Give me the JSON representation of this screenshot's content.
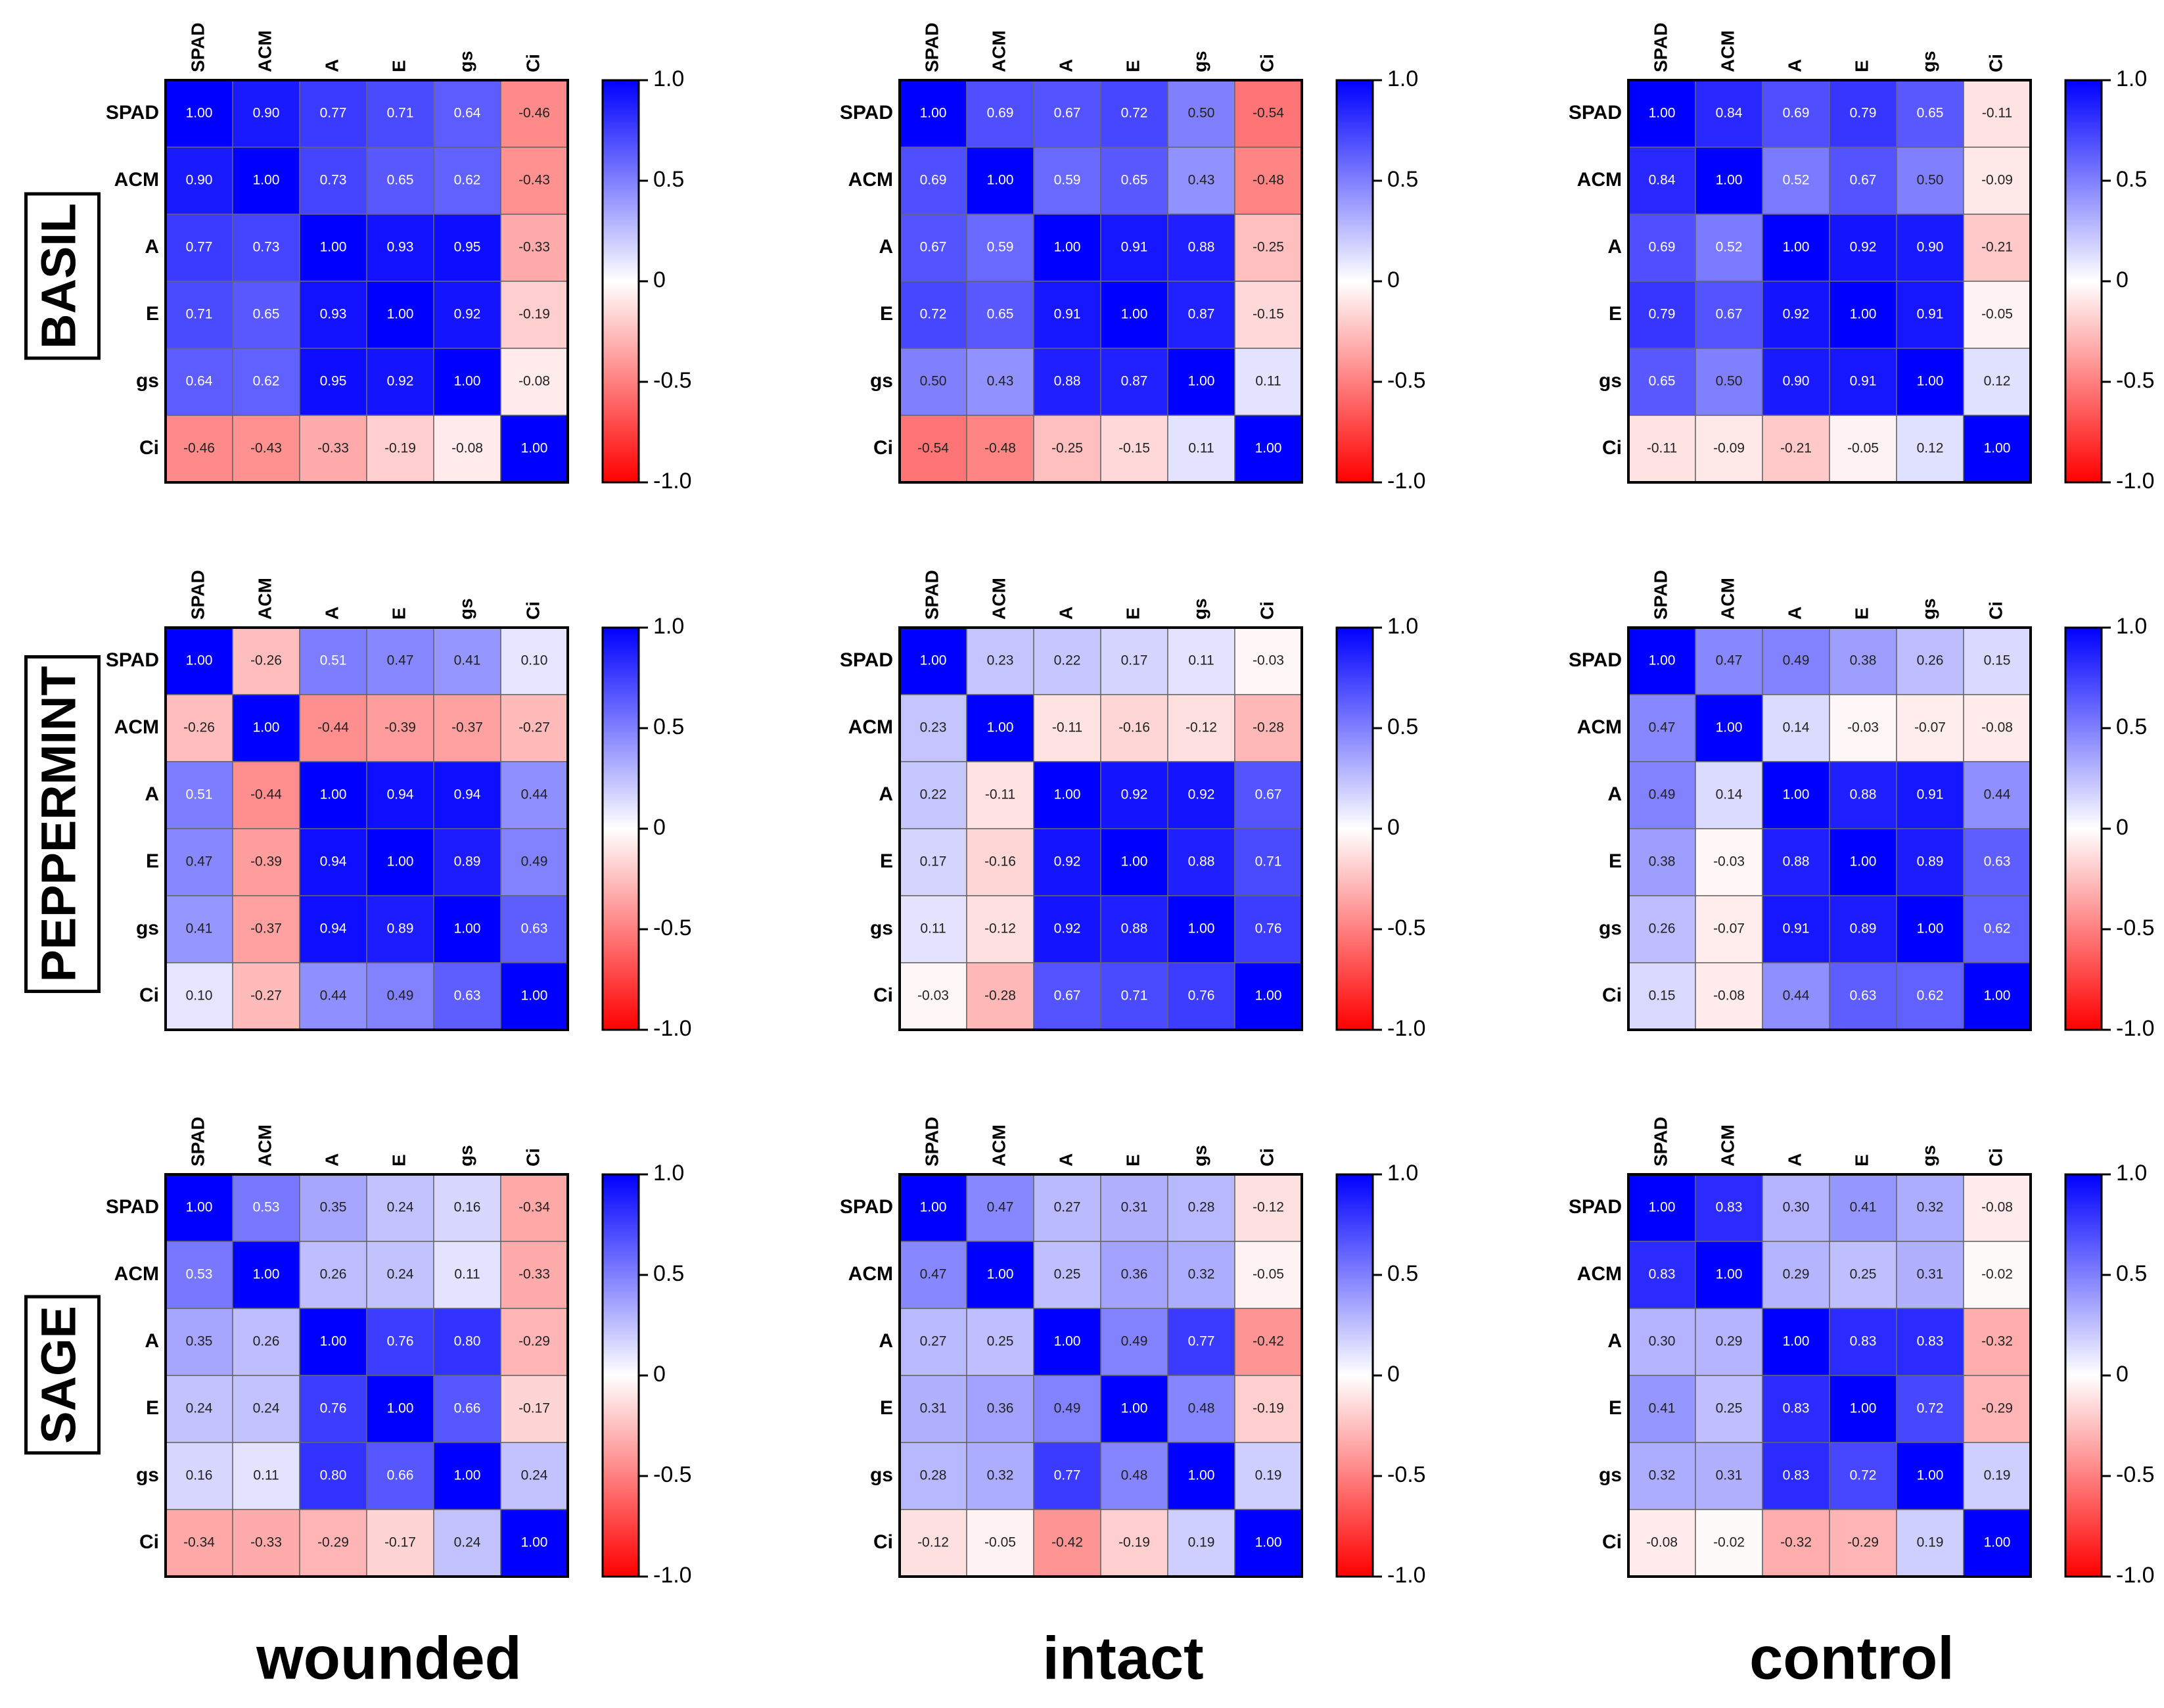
{
  "figure": {
    "rows": [
      "BASIL",
      "PEPPERMINT",
      "SAGE"
    ],
    "columns": [
      "wounded",
      "intact",
      "control"
    ]
  },
  "chart_data": [
    {
      "type": "heatmap",
      "x_categories": [
        "SPAD",
        "ACM",
        "A",
        "E",
        "gs",
        "Ci"
      ],
      "y_categories": [
        "SPAD",
        "ACM",
        "A",
        "E",
        "gs",
        "Ci"
      ],
      "zlim": [
        -1,
        1
      ],
      "zticks": [
        {
          "value": 1,
          "label": "1.0"
        },
        0.5,
        0,
        -0.5,
        {
          "value": -1,
          "label": "-1.0"
        }
      ],
      "colormap": [
        "#ff0000",
        "#ffffff",
        "#0000ff"
      ],
      "values": [
        [
          1,
          0.9,
          0.77,
          0.71,
          0.64,
          -0.46
        ],
        [
          0.9,
          1,
          0.73,
          0.65,
          0.62,
          -0.43
        ],
        [
          0.77,
          0.73,
          1,
          0.93,
          0.95,
          -0.33
        ],
        [
          0.71,
          0.65,
          0.93,
          1,
          0.92,
          -0.19
        ],
        [
          0.64,
          0.62,
          0.95,
          0.92,
          1,
          -0.08
        ],
        [
          -0.46,
          -0.43,
          -0.33,
          -0.19,
          -0.08,
          1
        ]
      ],
      "value_labels": [
        [
          "1.00",
          "0.90",
          "0.77",
          "0.71",
          "0.64",
          "-0.46"
        ],
        [
          "0.90",
          "1.00",
          "0.73",
          "0.65",
          "0.62",
          "-0.43"
        ],
        [
          "0.77",
          "0.73",
          "1.00",
          "0.93",
          "0.95",
          "-0.33"
        ],
        [
          "0.71",
          "0.65",
          "0.93",
          "1.00",
          "0.92",
          "-0.19"
        ],
        [
          "0.64",
          "0.62",
          "0.95",
          "0.92",
          "1.00",
          "-0.08"
        ],
        [
          "-0.46",
          "-0.43",
          "-0.33",
          "-0.19",
          "-0.08",
          "1.00"
        ]
      ]
    },
    {
      "type": "heatmap",
      "x_categories": [
        "SPAD",
        "ACM",
        "A",
        "E",
        "gs",
        "Ci"
      ],
      "y_categories": [
        "SPAD",
        "ACM",
        "A",
        "E",
        "gs",
        "Ci"
      ],
      "zlim": [
        -1,
        1
      ],
      "zticks": [
        {
          "value": 1,
          "label": "1.0"
        },
        0.5,
        0,
        -0.5,
        {
          "value": -1,
          "label": "-1.0"
        }
      ],
      "colormap": [
        "#ff0000",
        "#ffffff",
        "#0000ff"
      ],
      "values": [
        [
          1,
          0.69,
          0.67,
          0.72,
          0.5,
          -0.54
        ],
        [
          0.69,
          1,
          0.59,
          0.65,
          0.43,
          -0.48
        ],
        [
          0.67,
          0.59,
          1,
          0.91,
          0.88,
          -0.25
        ],
        [
          0.72,
          0.65,
          0.91,
          1,
          0.87,
          -0.15
        ],
        [
          0.5,
          0.43,
          0.88,
          0.87,
          1,
          0.11
        ],
        [
          -0.54,
          -0.48,
          -0.25,
          -0.15,
          0.11,
          1
        ]
      ],
      "value_labels": [
        [
          "1.00",
          "0.69",
          "0.67",
          "0.72",
          "0.50",
          "-0.54"
        ],
        [
          "0.69",
          "1.00",
          "0.59",
          "0.65",
          "0.43",
          "-0.48"
        ],
        [
          "0.67",
          "0.59",
          "1.00",
          "0.91",
          "0.88",
          "-0.25"
        ],
        [
          "0.72",
          "0.65",
          "0.91",
          "1.00",
          "0.87",
          "-0.15"
        ],
        [
          "0.50",
          "0.43",
          "0.88",
          "0.87",
          "1.00",
          "0.11"
        ],
        [
          "-0.54",
          "-0.48",
          "-0.25",
          "-0.15",
          "0.11",
          "1.00"
        ]
      ]
    },
    {
      "type": "heatmap",
      "x_categories": [
        "SPAD",
        "ACM",
        "A",
        "E",
        "gs",
        "Ci"
      ],
      "y_categories": [
        "SPAD",
        "ACM",
        "A",
        "E",
        "gs",
        "Ci"
      ],
      "zlim": [
        -1,
        1
      ],
      "zticks": [
        {
          "value": 1,
          "label": "1.0"
        },
        0.5,
        0,
        -0.5,
        {
          "value": -1,
          "label": "-1.0"
        }
      ],
      "colormap": [
        "#ff0000",
        "#ffffff",
        "#0000ff"
      ],
      "values": [
        [
          1,
          0.84,
          0.69,
          0.79,
          0.65,
          -0.11
        ],
        [
          0.84,
          1,
          0.52,
          0.67,
          0.5,
          -0.09
        ],
        [
          0.69,
          0.52,
          1,
          0.92,
          0.9,
          -0.21
        ],
        [
          0.79,
          0.67,
          0.92,
          1,
          0.91,
          -0.05
        ],
        [
          0.65,
          0.5,
          0.9,
          0.91,
          1,
          0.12
        ],
        [
          -0.11,
          -0.09,
          -0.21,
          -0.05,
          0.12,
          1
        ]
      ],
      "value_labels": [
        [
          "1.00",
          "0.84",
          "0.69",
          "0.79",
          "0.65",
          "-0.11"
        ],
        [
          "0.84",
          "1.00",
          "0.52",
          "0.67",
          "0.50",
          "-0.09"
        ],
        [
          "0.69",
          "0.52",
          "1.00",
          "0.92",
          "0.90",
          "-0.21"
        ],
        [
          "0.79",
          "0.67",
          "0.92",
          "1.00",
          "0.91",
          "-0.05"
        ],
        [
          "0.65",
          "0.50",
          "0.90",
          "0.91",
          "1.00",
          "0.12"
        ],
        [
          "-0.11",
          "-0.09",
          "-0.21",
          "-0.05",
          "0.12",
          "1.00"
        ]
      ]
    },
    {
      "type": "heatmap",
      "x_categories": [
        "SPAD",
        "ACM",
        "A",
        "E",
        "gs",
        "Ci"
      ],
      "y_categories": [
        "SPAD",
        "ACM",
        "A",
        "E",
        "gs",
        "Ci"
      ],
      "zlim": [
        -1,
        1
      ],
      "zticks": [
        {
          "value": 1,
          "label": "1.0"
        },
        0.5,
        0,
        -0.5,
        {
          "value": -1,
          "label": "-1.0"
        }
      ],
      "colormap": [
        "#ff0000",
        "#ffffff",
        "#0000ff"
      ],
      "values": [
        [
          1,
          -0.26,
          0.51,
          0.47,
          0.41,
          0.1
        ],
        [
          -0.26,
          1,
          -0.44,
          -0.39,
          -0.37,
          -0.27
        ],
        [
          0.51,
          -0.44,
          1,
          0.94,
          0.94,
          0.44
        ],
        [
          0.47,
          -0.39,
          0.94,
          1,
          0.89,
          0.49
        ],
        [
          0.41,
          -0.37,
          0.94,
          0.89,
          1,
          0.63
        ],
        [
          0.1,
          -0.27,
          0.44,
          0.49,
          0.63,
          1
        ]
      ],
      "value_labels": [
        [
          "1.00",
          "-0.26",
          "0.51",
          "0.47",
          "0.41",
          "0.10"
        ],
        [
          "-0.26",
          "1.00",
          "-0.44",
          "-0.39",
          "-0.37",
          "-0.27"
        ],
        [
          "0.51",
          "-0.44",
          "1.00",
          "0.94",
          "0.94",
          "0.44"
        ],
        [
          "0.47",
          "-0.39",
          "0.94",
          "1.00",
          "0.89",
          "0.49"
        ],
        [
          "0.41",
          "-0.37",
          "0.94",
          "0.89",
          "1.00",
          "0.63"
        ],
        [
          "0.10",
          "-0.27",
          "0.44",
          "0.49",
          "0.63",
          "1.00"
        ]
      ]
    },
    {
      "type": "heatmap",
      "x_categories": [
        "SPAD",
        "ACM",
        "A",
        "E",
        "gs",
        "Ci"
      ],
      "y_categories": [
        "SPAD",
        "ACM",
        "A",
        "E",
        "gs",
        "Ci"
      ],
      "zlim": [
        -1,
        1
      ],
      "zticks": [
        {
          "value": 1,
          "label": "1.0"
        },
        0.5,
        0,
        -0.5,
        {
          "value": -1,
          "label": "-1.0"
        }
      ],
      "colormap": [
        "#ff0000",
        "#ffffff",
        "#0000ff"
      ],
      "values": [
        [
          1,
          0.23,
          0.22,
          0.17,
          0.11,
          -0.03
        ],
        [
          0.23,
          1,
          -0.11,
          -0.16,
          -0.12,
          -0.28
        ],
        [
          0.22,
          -0.11,
          1,
          0.92,
          0.92,
          0.67
        ],
        [
          0.17,
          -0.16,
          0.92,
          1,
          0.88,
          0.71
        ],
        [
          0.11,
          -0.12,
          0.92,
          0.88,
          1,
          0.76
        ],
        [
          -0.03,
          -0.28,
          0.67,
          0.71,
          0.76,
          1
        ]
      ],
      "value_labels": [
        [
          "1.00",
          "0.23",
          "0.22",
          "0.17",
          "0.11",
          "-0.03"
        ],
        [
          "0.23",
          "1.00",
          "-0.11",
          "-0.16",
          "-0.12",
          "-0.28"
        ],
        [
          "0.22",
          "-0.11",
          "1.00",
          "0.92",
          "0.92",
          "0.67"
        ],
        [
          "0.17",
          "-0.16",
          "0.92",
          "1.00",
          "0.88",
          "0.71"
        ],
        [
          "0.11",
          "-0.12",
          "0.92",
          "0.88",
          "1.00",
          "0.76"
        ],
        [
          "-0.03",
          "-0.28",
          "0.67",
          "0.71",
          "0.76",
          "1.00"
        ]
      ]
    },
    {
      "type": "heatmap",
      "x_categories": [
        "SPAD",
        "ACM",
        "A",
        "E",
        "gs",
        "Ci"
      ],
      "y_categories": [
        "SPAD",
        "ACM",
        "A",
        "E",
        "gs",
        "Ci"
      ],
      "zlim": [
        -1,
        1
      ],
      "zticks": [
        {
          "value": 1,
          "label": "1.0"
        },
        0.5,
        0,
        -0.5,
        {
          "value": -1,
          "label": "-1.0"
        }
      ],
      "colormap": [
        "#ff0000",
        "#ffffff",
        "#0000ff"
      ],
      "values": [
        [
          1,
          0.47,
          0.49,
          0.38,
          0.26,
          0.15
        ],
        [
          0.47,
          1,
          0.14,
          -0.03,
          -0.07,
          -0.08
        ],
        [
          0.49,
          0.14,
          1,
          0.88,
          0.91,
          0.44
        ],
        [
          0.38,
          -0.03,
          0.88,
          1,
          0.89,
          0.63
        ],
        [
          0.26,
          -0.07,
          0.91,
          0.89,
          1,
          0.62
        ],
        [
          0.15,
          -0.08,
          0.44,
          0.63,
          0.62,
          1
        ]
      ],
      "value_labels": [
        [
          "1.00",
          "0.47",
          "0.49",
          "0.38",
          "0.26",
          "0.15"
        ],
        [
          "0.47",
          "1.00",
          "0.14",
          "-0.03",
          "-0.07",
          "-0.08"
        ],
        [
          "0.49",
          "0.14",
          "1.00",
          "0.88",
          "0.91",
          "0.44"
        ],
        [
          "0.38",
          "-0.03",
          "0.88",
          "1.00",
          "0.89",
          "0.63"
        ],
        [
          "0.26",
          "-0.07",
          "0.91",
          "0.89",
          "1.00",
          "0.62"
        ],
        [
          "0.15",
          "-0.08",
          "0.44",
          "0.63",
          "0.62",
          "1.00"
        ]
      ]
    },
    {
      "type": "heatmap",
      "x_categories": [
        "SPAD",
        "ACM",
        "A",
        "E",
        "gs",
        "Ci"
      ],
      "y_categories": [
        "SPAD",
        "ACM",
        "A",
        "E",
        "gs",
        "Ci"
      ],
      "zlim": [
        -1,
        1
      ],
      "zticks": [
        {
          "value": 1,
          "label": "1.0"
        },
        0.5,
        0,
        -0.5,
        {
          "value": -1,
          "label": "-1.0"
        }
      ],
      "colormap": [
        "#ff0000",
        "#ffffff",
        "#0000ff"
      ],
      "values": [
        [
          1,
          0.53,
          0.35,
          0.24,
          0.16,
          -0.34
        ],
        [
          0.53,
          1,
          0.26,
          0.24,
          0.11,
          -0.33
        ],
        [
          0.35,
          0.26,
          1,
          0.76,
          0.8,
          -0.29
        ],
        [
          0.24,
          0.24,
          0.76,
          1,
          0.66,
          -0.17
        ],
        [
          0.16,
          0.11,
          0.8,
          0.66,
          1,
          0.24
        ],
        [
          -0.34,
          -0.33,
          -0.29,
          -0.17,
          0.24,
          1
        ]
      ],
      "value_labels": [
        [
          "1.00",
          "0.53",
          "0.35",
          "0.24",
          "0.16",
          "-0.34"
        ],
        [
          "0.53",
          "1.00",
          "0.26",
          "0.24",
          "0.11",
          "-0.33"
        ],
        [
          "0.35",
          "0.26",
          "1.00",
          "0.76",
          "0.80",
          "-0.29"
        ],
        [
          "0.24",
          "0.24",
          "0.76",
          "1.00",
          "0.66",
          "-0.17"
        ],
        [
          "0.16",
          "0.11",
          "0.80",
          "0.66",
          "1.00",
          "0.24"
        ],
        [
          "-0.34",
          "-0.33",
          "-0.29",
          "-0.17",
          "0.24",
          "1.00"
        ]
      ]
    },
    {
      "type": "heatmap",
      "x_categories": [
        "SPAD",
        "ACM",
        "A",
        "E",
        "gs",
        "Ci"
      ],
      "y_categories": [
        "SPAD",
        "ACM",
        "A",
        "E",
        "gs",
        "Ci"
      ],
      "zlim": [
        -1,
        1
      ],
      "zticks": [
        {
          "value": 1,
          "label": "1.0"
        },
        0.5,
        0,
        -0.5,
        {
          "value": -1,
          "label": "-1.0"
        }
      ],
      "colormap": [
        "#ff0000",
        "#ffffff",
        "#0000ff"
      ],
      "values": [
        [
          1,
          0.47,
          0.27,
          0.31,
          0.28,
          -0.12
        ],
        [
          0.47,
          1,
          0.25,
          0.36,
          0.32,
          -0.05
        ],
        [
          0.27,
          0.25,
          1,
          0.49,
          0.77,
          -0.42
        ],
        [
          0.31,
          0.36,
          0.49,
          1,
          0.48,
          -0.19
        ],
        [
          0.28,
          0.32,
          0.77,
          0.48,
          1,
          0.19
        ],
        [
          -0.12,
          -0.05,
          -0.42,
          -0.19,
          0.19,
          1
        ]
      ],
      "value_labels": [
        [
          "1.00",
          "0.47",
          "0.27",
          "0.31",
          "0.28",
          "-0.12"
        ],
        [
          "0.47",
          "1.00",
          "0.25",
          "0.36",
          "0.32",
          "-0.05"
        ],
        [
          "0.27",
          "0.25",
          "1.00",
          "0.49",
          "0.77",
          "-0.42"
        ],
        [
          "0.31",
          "0.36",
          "0.49",
          "1.00",
          "0.48",
          "-0.19"
        ],
        [
          "0.28",
          "0.32",
          "0.77",
          "0.48",
          "1.00",
          "0.19"
        ],
        [
          "-0.12",
          "-0.05",
          "-0.42",
          "-0.19",
          "0.19",
          "1.00"
        ]
      ]
    },
    {
      "type": "heatmap",
      "x_categories": [
        "SPAD",
        "ACM",
        "A",
        "E",
        "gs",
        "Ci"
      ],
      "y_categories": [
        "SPAD",
        "ACM",
        "A",
        "E",
        "gs",
        "Ci"
      ],
      "zlim": [
        -1,
        1
      ],
      "zticks": [
        {
          "value": 1,
          "label": "1.0"
        },
        0.5,
        0,
        -0.5,
        {
          "value": -1,
          "label": "-1.0"
        }
      ],
      "colormap": [
        "#ff0000",
        "#ffffff",
        "#0000ff"
      ],
      "values": [
        [
          1,
          0.83,
          0.3,
          0.41,
          0.32,
          -0.08
        ],
        [
          0.83,
          1,
          0.29,
          0.25,
          0.31,
          -0.02
        ],
        [
          0.3,
          0.29,
          1,
          0.83,
          0.83,
          -0.32
        ],
        [
          0.41,
          0.25,
          0.83,
          1,
          0.72,
          -0.29
        ],
        [
          0.32,
          0.31,
          0.83,
          0.72,
          1,
          0.19
        ],
        [
          -0.08,
          -0.02,
          -0.32,
          -0.29,
          0.19,
          1
        ]
      ],
      "value_labels": [
        [
          "1.00",
          "0.83",
          "0.30",
          "0.41",
          "0.32",
          "-0.08"
        ],
        [
          "0.83",
          "1.00",
          "0.29",
          "0.25",
          "0.31",
          "-0.02"
        ],
        [
          "0.30",
          "0.29",
          "1.00",
          "0.83",
          "0.83",
          "-0.32"
        ],
        [
          "0.41",
          "0.25",
          "0.83",
          "1.00",
          "0.72",
          "-0.29"
        ],
        [
          "0.32",
          "0.31",
          "0.83",
          "0.72",
          "1.00",
          "0.19"
        ],
        [
          "-0.08",
          "-0.02",
          "-0.32",
          "-0.29",
          "0.19",
          "1.00"
        ]
      ]
    }
  ]
}
